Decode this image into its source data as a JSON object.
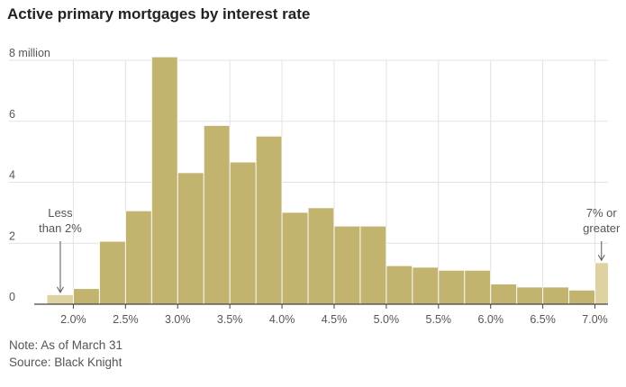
{
  "title": "Active primary mortgages by interest rate",
  "note": "Note: As of March 31",
  "source": "Source: Black Knight",
  "chart_data": {
    "type": "bar",
    "title": "Active primary mortgages by interest rate",
    "unit_label": "8 million",
    "ylim": [
      0,
      8
    ],
    "yticks": [
      {
        "value": 0,
        "label": "0"
      },
      {
        "value": 2,
        "label": "2"
      },
      {
        "value": 4,
        "label": "4"
      },
      {
        "value": 6,
        "label": "6"
      },
      {
        "value": 8,
        "label": "8 million"
      }
    ],
    "x_range": [
      1.625,
      7.125
    ],
    "xticks": [
      {
        "value": 2.0,
        "label": "2.0%"
      },
      {
        "value": 2.5,
        "label": "2.5%"
      },
      {
        "value": 3.0,
        "label": "3.0%"
      },
      {
        "value": 3.5,
        "label": "3.5%"
      },
      {
        "value": 4.0,
        "label": "4.0%"
      },
      {
        "value": 4.5,
        "label": "4.5%"
      },
      {
        "value": 5.0,
        "label": "5.0%"
      },
      {
        "value": 5.5,
        "label": "5.5%"
      },
      {
        "value": 6.0,
        "label": "6.0%"
      },
      {
        "value": 6.5,
        "label": "6.5%"
      },
      {
        "value": 7.0,
        "label": "7.0%"
      }
    ],
    "grid": true,
    "bars": [
      {
        "from": 1.75,
        "to": 2.0,
        "value": 0.3,
        "highlight": true
      },
      {
        "from": 2.0,
        "to": 2.25,
        "value": 0.5
      },
      {
        "from": 2.25,
        "to": 2.5,
        "value": 2.05
      },
      {
        "from": 2.5,
        "to": 2.75,
        "value": 3.05
      },
      {
        "from": 2.75,
        "to": 3.0,
        "value": 8.1
      },
      {
        "from": 3.0,
        "to": 3.25,
        "value": 4.3
      },
      {
        "from": 3.25,
        "to": 3.5,
        "value": 5.85
      },
      {
        "from": 3.5,
        "to": 3.75,
        "value": 4.65
      },
      {
        "from": 3.75,
        "to": 4.0,
        "value": 5.5
      },
      {
        "from": 4.0,
        "to": 4.25,
        "value": 3.0
      },
      {
        "from": 4.25,
        "to": 4.5,
        "value": 3.15
      },
      {
        "from": 4.5,
        "to": 4.75,
        "value": 2.55
      },
      {
        "from": 4.75,
        "to": 5.0,
        "value": 2.55
      },
      {
        "from": 5.0,
        "to": 5.25,
        "value": 1.25
      },
      {
        "from": 5.25,
        "to": 5.5,
        "value": 1.2
      },
      {
        "from": 5.5,
        "to": 5.75,
        "value": 1.1
      },
      {
        "from": 5.75,
        "to": 6.0,
        "value": 1.1
      },
      {
        "from": 6.0,
        "to": 6.25,
        "value": 0.65
      },
      {
        "from": 6.25,
        "to": 6.5,
        "value": 0.55
      },
      {
        "from": 6.5,
        "to": 6.75,
        "value": 0.55
      },
      {
        "from": 6.75,
        "to": 7.0,
        "value": 0.45
      },
      {
        "from": 7.0,
        "to": 7.125,
        "value": 1.35,
        "highlight": true
      }
    ],
    "annotations": [
      {
        "lines": [
          "Less",
          "than 2%"
        ],
        "x": 1.875,
        "align": "middle"
      },
      {
        "lines": [
          "7% or",
          "greater"
        ],
        "x": 7.0625,
        "align": "middle"
      }
    ],
    "colors": {
      "bar": "#c2b36e",
      "highlight": "#ded2a3",
      "grid": "#e2e2e2",
      "axis": "#444444",
      "text": "#555555"
    }
  }
}
